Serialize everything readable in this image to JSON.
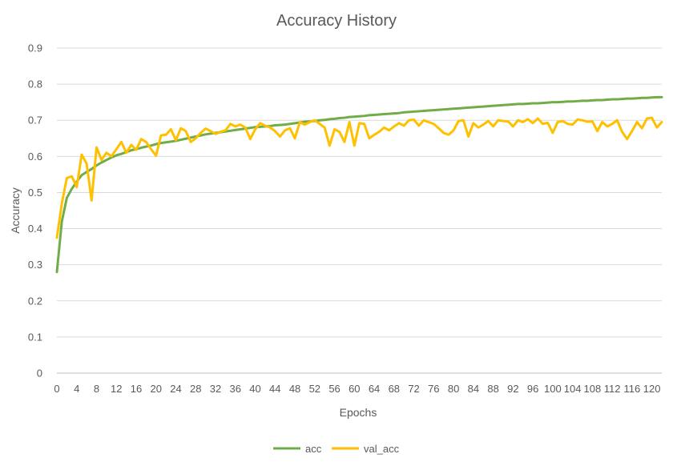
{
  "chart_data": {
    "type": "line",
    "title": "Accuracy History",
    "xlabel": "Epochs",
    "ylabel": "Accuracy",
    "xlim": [
      0,
      122
    ],
    "ylim": [
      0,
      0.9
    ],
    "y_ticks": [
      0,
      0.1,
      0.2,
      0.3,
      0.4,
      0.5,
      0.6,
      0.7,
      0.8,
      0.9
    ],
    "y_tick_labels": [
      "0",
      "0.1",
      "0.2",
      "0.3",
      "0.4",
      "0.5",
      "0.6",
      "0.7",
      "0.8",
      "0.9"
    ],
    "x_tick_labels": [
      "0",
      "4",
      "8",
      "12",
      "16",
      "20",
      "24",
      "28",
      "32",
      "36",
      "40",
      "44",
      "48",
      "52",
      "56",
      "60",
      "64",
      "68",
      "72",
      "76",
      "80",
      "84",
      "88",
      "92",
      "96",
      "100",
      "104",
      "108",
      "112",
      "116",
      "120"
    ],
    "grid": true,
    "legend": "bottom",
    "series": [
      {
        "name": "acc",
        "color": "#70AD47",
        "values": [
          0.28,
          0.42,
          0.485,
          0.51,
          0.53,
          0.548,
          0.557,
          0.565,
          0.575,
          0.583,
          0.59,
          0.597,
          0.603,
          0.607,
          0.612,
          0.617,
          0.62,
          0.624,
          0.627,
          0.63,
          0.634,
          0.637,
          0.639,
          0.641,
          0.643,
          0.646,
          0.649,
          0.652,
          0.655,
          0.658,
          0.661,
          0.663,
          0.665,
          0.667,
          0.669,
          0.671,
          0.673,
          0.675,
          0.677,
          0.679,
          0.681,
          0.682,
          0.683,
          0.684,
          0.686,
          0.687,
          0.688,
          0.69,
          0.692,
          0.694,
          0.696,
          0.697,
          0.698,
          0.7,
          0.701,
          0.703,
          0.704,
          0.706,
          0.707,
          0.709,
          0.71,
          0.711,
          0.712,
          0.714,
          0.715,
          0.716,
          0.717,
          0.718,
          0.719,
          0.72,
          0.722,
          0.723,
          0.724,
          0.725,
          0.726,
          0.727,
          0.728,
          0.729,
          0.73,
          0.731,
          0.732,
          0.733,
          0.734,
          0.735,
          0.736,
          0.737,
          0.738,
          0.739,
          0.74,
          0.741,
          0.742,
          0.743,
          0.744,
          0.745,
          0.745,
          0.746,
          0.747,
          0.747,
          0.748,
          0.749,
          0.75,
          0.75,
          0.751,
          0.752,
          0.752,
          0.753,
          0.754,
          0.754,
          0.755,
          0.756,
          0.756,
          0.757,
          0.758,
          0.758,
          0.759,
          0.76,
          0.76,
          0.761,
          0.762,
          0.762,
          0.763,
          0.764,
          0.764
        ]
      },
      {
        "name": "val_acc",
        "color": "#FFC000",
        "values": [
          0.375,
          0.47,
          0.54,
          0.545,
          0.515,
          0.605,
          0.58,
          0.478,
          0.625,
          0.59,
          0.61,
          0.6,
          0.62,
          0.64,
          0.61,
          0.632,
          0.618,
          0.648,
          0.64,
          0.62,
          0.602,
          0.658,
          0.66,
          0.675,
          0.645,
          0.678,
          0.67,
          0.64,
          0.65,
          0.665,
          0.677,
          0.67,
          0.662,
          0.668,
          0.672,
          0.69,
          0.683,
          0.688,
          0.68,
          0.648,
          0.675,
          0.692,
          0.685,
          0.68,
          0.67,
          0.655,
          0.672,
          0.678,
          0.65,
          0.695,
          0.688,
          0.695,
          0.7,
          0.69,
          0.68,
          0.63,
          0.675,
          0.668,
          0.64,
          0.695,
          0.63,
          0.692,
          0.69,
          0.65,
          0.66,
          0.668,
          0.68,
          0.672,
          0.683,
          0.692,
          0.685,
          0.7,
          0.702,
          0.685,
          0.7,
          0.695,
          0.69,
          0.678,
          0.665,
          0.66,
          0.672,
          0.698,
          0.7,
          0.655,
          0.692,
          0.68,
          0.688,
          0.698,
          0.683,
          0.7,
          0.698,
          0.697,
          0.683,
          0.7,
          0.695,
          0.703,
          0.692,
          0.705,
          0.69,
          0.693,
          0.665,
          0.695,
          0.698,
          0.69,
          0.688,
          0.702,
          0.7,
          0.696,
          0.697,
          0.67,
          0.695,
          0.683,
          0.69,
          0.7,
          0.668,
          0.648,
          0.67,
          0.695,
          0.678,
          0.705,
          0.707,
          0.68,
          0.695
        ]
      }
    ]
  }
}
